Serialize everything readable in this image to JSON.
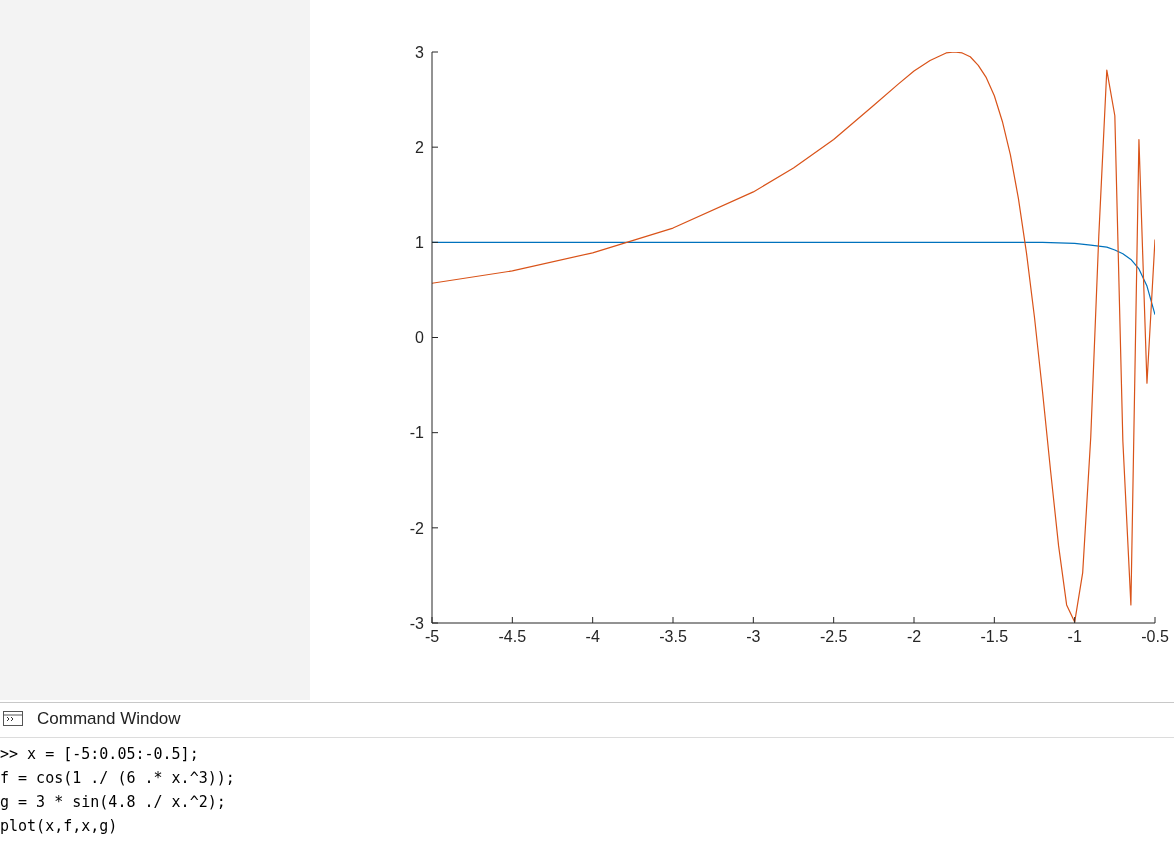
{
  "chart_data": {
    "type": "line",
    "xlim": [
      -5,
      -0.5
    ],
    "ylim": [
      -3,
      3
    ],
    "xticks": [
      -5,
      -4.5,
      -4,
      -3.5,
      -3,
      -2.5,
      -2,
      -1.5,
      -1,
      -0.5
    ],
    "yticks": [
      -3,
      -2,
      -1,
      0,
      1,
      2,
      3
    ],
    "grid": false,
    "legend": false,
    "marker": "none",
    "line_style": "solid",
    "series": [
      {
        "color": "#0072bd",
        "x": [
          -5,
          -3,
          -2,
          -1.5,
          -1.2,
          -1,
          -0.9,
          -0.85,
          -0.8,
          -0.75,
          -0.7,
          -0.65,
          -0.6,
          -0.55,
          -0.5
        ],
        "values": [
          1,
          1,
          1,
          1,
          1,
          0.99,
          0.97,
          0.96,
          0.95,
          0.92,
          0.88,
          0.82,
          0.72,
          0.54,
          0.24
        ]
      },
      {
        "color": "#d95319",
        "x": [
          -5,
          -4.5,
          -4,
          -3.5,
          -3,
          -2.75,
          -2.5,
          -2.25,
          -2.1,
          -2,
          -1.9,
          -1.8,
          -1.75,
          -1.7,
          -1.65,
          -1.6,
          -1.55,
          -1.5,
          -1.45,
          -1.4,
          -1.35,
          -1.3,
          -1.25,
          -1.2,
          -1.15,
          -1.1,
          -1.05,
          -1,
          -0.95,
          -0.9,
          -0.85,
          -0.8,
          -0.75,
          -0.7,
          -0.65,
          -0.6,
          -0.55,
          -0.5
        ],
        "values": [
          0.57,
          0.7,
          0.89,
          1.15,
          1.53,
          1.78,
          2.08,
          2.44,
          2.66,
          2.8,
          2.91,
          2.99,
          3,
          2.99,
          2.95,
          2.86,
          2.73,
          2.54,
          2.27,
          1.92,
          1.46,
          0.89,
          0.21,
          -0.57,
          -1.4,
          -2.19,
          -2.81,
          -2.99,
          -2.47,
          -1.05,
          1.06,
          2.81,
          2.33,
          -1.09,
          -2.81,
          2.08,
          -0.48,
          1.03
        ]
      }
    ],
    "annotations": [
      "Command Window",
      ">> x = [-5:0.05:-0.5];",
      "f = cos(1 ./ (6 .* x.^3));",
      "g = 3 * sin(4.8 ./ x.^2);",
      "plot(x,f,x,g)"
    ]
  }
}
